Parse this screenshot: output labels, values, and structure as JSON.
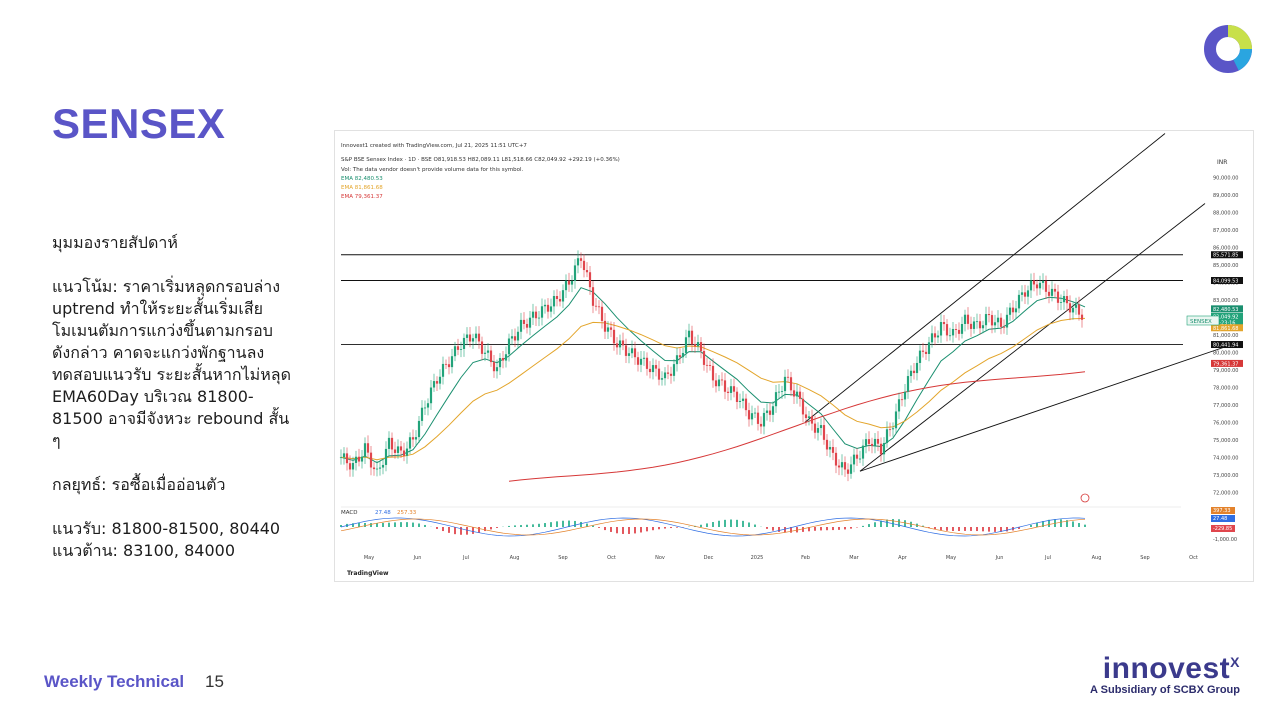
{
  "slide": {
    "title": "SENSEX",
    "footer_title": "Weekly Technical",
    "page_number": "15",
    "brand_name": "innovest",
    "brand_mark": "X",
    "brand_sub": "A Subsidiary of SCBX Group"
  },
  "analysis": {
    "heading": "มุมมองรายสัปดาห์",
    "trend_lines": [
      "แนวโน้ม: ราคาเริ่มหลุดกรอบล่าง",
      "uptrend ทำให้ระยะสั้นเริ่มเสีย",
      "โมเมนตัมการแกว่งขึ้นตามกรอบ",
      "ดังกล่าว คาดจะแกว่งพักฐานลง",
      "ทดสอบแนวรับ ระยะสั้นหากไม่หลุด",
      "EMA60Day บริเวณ 81800-",
      "81500 อาจมีจังหวะ rebound สั้น",
      "ๆ"
    ],
    "strategy": "กลยุทธ์: รอซื้อเมื่ออ่อนตัว",
    "support": "แนวรับ: 81800-81500, 80440",
    "resistance": "แนวต้าน: 83100, 84000"
  },
  "chart_header": {
    "created_by": "Innovest1 created with TradingView.com, Jul 21, 2025 11:51 UTC+7",
    "symbol_line": "S&P BSE Sensex Index · 1D · BSE  O81,918.53 H82,089.11 L81,518.66 C82,049.92 +292.19 (+0.36%)",
    "vol_note": "Vol: The data vendor doesn't provide volume data for this symbol.",
    "ema_lines": [
      "EMA  82,480.53",
      "EMA  81,861.68",
      "EMA  79,361.37"
    ],
    "currency": "INR",
    "symbol_tag": "SENSEX",
    "macd_label": "MACD",
    "macd_values": [
      "27.48",
      "257.33"
    ],
    "watermark": "TradingView"
  },
  "chart_data": {
    "type": "candlestick",
    "title": "S&P BSE Sensex Index · 1D · BSE",
    "x_ticks": [
      "May",
      "Jun",
      "Jul",
      "Aug",
      "Sep",
      "Oct",
      "Nov",
      "Dec",
      "2025",
      "Feb",
      "Mar",
      "Apr",
      "May",
      "Jun",
      "Jul",
      "Aug",
      "Sep",
      "Oct"
    ],
    "y_ticks": [
      72000,
      73000,
      74000,
      75000,
      76000,
      77000,
      78000,
      79000,
      80000,
      81000,
      82000,
      83000,
      84000,
      85000,
      86000,
      87000,
      88000,
      89000,
      90000
    ],
    "ylim": [
      71500,
      91500
    ],
    "price_path": [
      [
        0,
        74000
      ],
      [
        1,
        73500
      ],
      [
        2,
        74500
      ],
      [
        3,
        73000
      ],
      [
        4,
        74800
      ],
      [
        5,
        74200
      ],
      [
        6,
        75000
      ],
      [
        7,
        77000
      ],
      [
        8,
        78500
      ],
      [
        9,
        79500
      ],
      [
        10,
        80500
      ],
      [
        11,
        81000
      ],
      [
        12,
        80000
      ],
      [
        13,
        79000
      ],
      [
        14,
        80500
      ],
      [
        15,
        81500
      ],
      [
        16,
        82000
      ],
      [
        17,
        82500
      ],
      [
        18,
        83000
      ],
      [
        19,
        84000
      ],
      [
        20,
        85500
      ],
      [
        21,
        83000
      ],
      [
        22,
        81500
      ],
      [
        23,
        80500
      ],
      [
        24,
        80000
      ],
      [
        25,
        79500
      ],
      [
        26,
        79000
      ],
      [
        27,
        78500
      ],
      [
        28,
        79500
      ],
      [
        29,
        81000
      ],
      [
        30,
        80000
      ],
      [
        31,
        78500
      ],
      [
        32,
        78000
      ],
      [
        33,
        77500
      ],
      [
        34,
        76500
      ],
      [
        35,
        76000
      ],
      [
        36,
        77000
      ],
      [
        37,
        78500
      ],
      [
        38,
        77500
      ],
      [
        39,
        76000
      ],
      [
        40,
        75500
      ],
      [
        41,
        74000
      ],
      [
        42,
        73200
      ],
      [
        43,
        74000
      ],
      [
        44,
        75000
      ],
      [
        45,
        74500
      ],
      [
        46,
        76000
      ],
      [
        47,
        78000
      ],
      [
        48,
        79500
      ],
      [
        49,
        80500
      ],
      [
        50,
        81500
      ],
      [
        51,
        81000
      ],
      [
        52,
        81800
      ],
      [
        53,
        81500
      ],
      [
        54,
        82000
      ],
      [
        55,
        81500
      ],
      [
        56,
        82500
      ],
      [
        57,
        83500
      ],
      [
        58,
        84000
      ],
      [
        59,
        83500
      ],
      [
        60,
        83000
      ],
      [
        61,
        82500
      ],
      [
        62,
        82050
      ]
    ],
    "price_labels": [
      "85,571.85",
      "84,099.53",
      "82,480.53",
      "82,049.92",
      "05:23:16",
      "81,861.68",
      "80,441.94",
      "79,361.37"
    ],
    "horizontal_levels": [
      85571.85,
      84099.53,
      80441.94
    ],
    "ema_series": [
      {
        "name": "EMA",
        "last": 82480.53,
        "color": "#1a8f6f"
      },
      {
        "name": "EMA",
        "last": 81861.68,
        "color": "#e3a52b"
      },
      {
        "name": "EMA",
        "last": 79361.37,
        "color": "#d63838"
      }
    ],
    "macd_axis": [
      "397.33",
      "27.48",
      "-229.85",
      "-1,000.00"
    ],
    "colors": {
      "up": "#22a37a",
      "down": "#e0464d",
      "accent": "#5a55c7"
    }
  }
}
